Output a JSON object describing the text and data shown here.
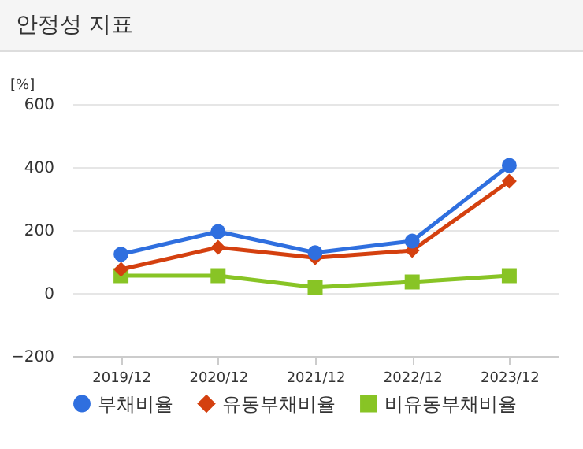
{
  "chart_data": {
    "type": "line",
    "title": "안정성 지표",
    "ylabel": "[%]",
    "categories": [
      "2019/12",
      "2020/12",
      "2021/12",
      "2022/12",
      "2023/12"
    ],
    "series": [
      {
        "name": "부채비율",
        "color": "#2f6fdf",
        "marker": "circle",
        "values": [
          123,
          195,
          128,
          165,
          405
        ]
      },
      {
        "name": "유동부채비율",
        "color": "#d4400f",
        "marker": "diamond",
        "values": [
          75,
          145,
          112,
          135,
          355
        ]
      },
      {
        "name": "비유동부채비율",
        "color": "#88c425",
        "marker": "square",
        "values": [
          55,
          55,
          18,
          35,
          55
        ]
      }
    ],
    "ylim": [
      -200,
      600
    ],
    "yticks": [
      -200,
      0,
      200,
      400,
      600
    ],
    "grid": "y",
    "legend": "bottom",
    "line_style": "solid"
  }
}
